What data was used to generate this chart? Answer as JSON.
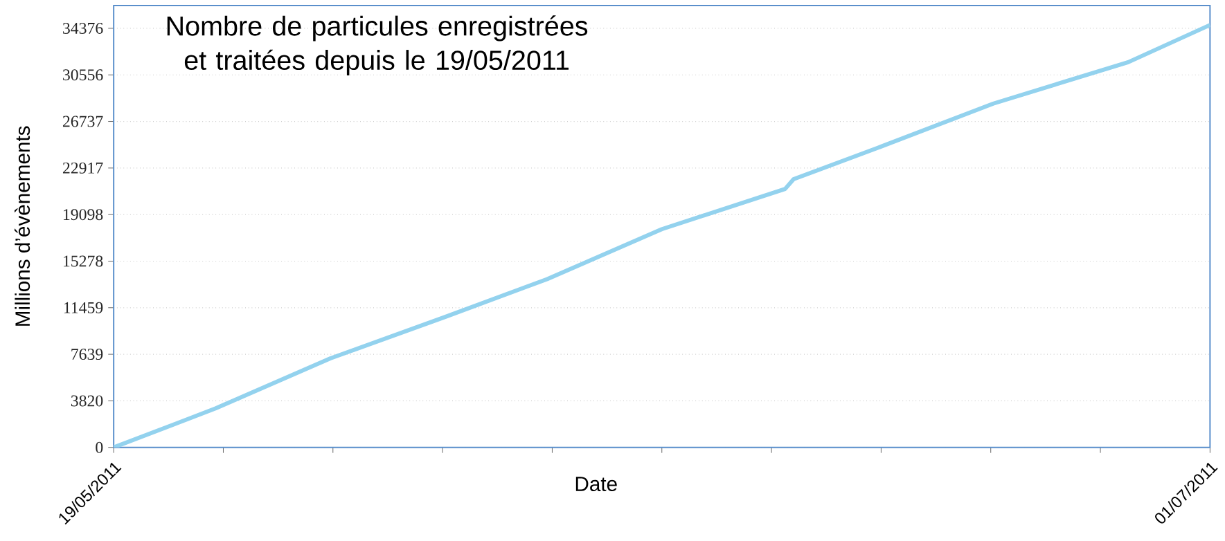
{
  "chart_data": {
    "type": "line",
    "title": "Nombre de particules enregistrées et traitées depuis le 19/05/2011",
    "xlabel": "Date",
    "ylabel": "Millions d’évènements",
    "x": [
      "2011-05-19",
      "2011-05-23",
      "2011-05-27T12:00",
      "2011-06-01",
      "2011-06-05",
      "2011-06-09T12:00",
      "2011-06-14T08:00",
      "2011-06-14T16:00",
      "2011-06-18",
      "2011-06-22T12:00",
      "2011-06-27T19:00",
      "2011-07-01"
    ],
    "series": [
      {
        "color": "#93d2ee",
        "values": [
          0,
          3200,
          7300,
          10700,
          13800,
          17900,
          21200,
          22000,
          24600,
          28200,
          31600,
          34650
        ]
      }
    ],
    "xlim": [
      "2011-05-19",
      "2011-07-01"
    ],
    "xticks": [
      {
        "value": "2011-05-19",
        "label": "19/05/2011"
      },
      {
        "value": "2011-05-23T07:12",
        "label": null
      },
      {
        "value": "2011-05-27T14:24",
        "label": null
      },
      {
        "value": "2011-05-31T21:36",
        "label": null
      },
      {
        "value": "2011-06-05T04:48",
        "label": null
      },
      {
        "value": "2011-06-09T12:00",
        "label": null
      },
      {
        "value": "2011-06-13T19:12",
        "label": null
      },
      {
        "value": "2011-06-18T02:24",
        "label": null
      },
      {
        "value": "2011-06-22T09:36",
        "label": null
      },
      {
        "value": "2011-06-26T16:48",
        "label": null
      },
      {
        "value": "2011-07-01",
        "label": "01/07/2011"
      }
    ],
    "ylim": [
      0,
      36250
    ],
    "yticks": [
      0,
      3820,
      7639,
      11459,
      15278,
      19098,
      22917,
      26737,
      30556,
      34376
    ],
    "grid": "y",
    "marker": "none",
    "line_style": "solid"
  }
}
